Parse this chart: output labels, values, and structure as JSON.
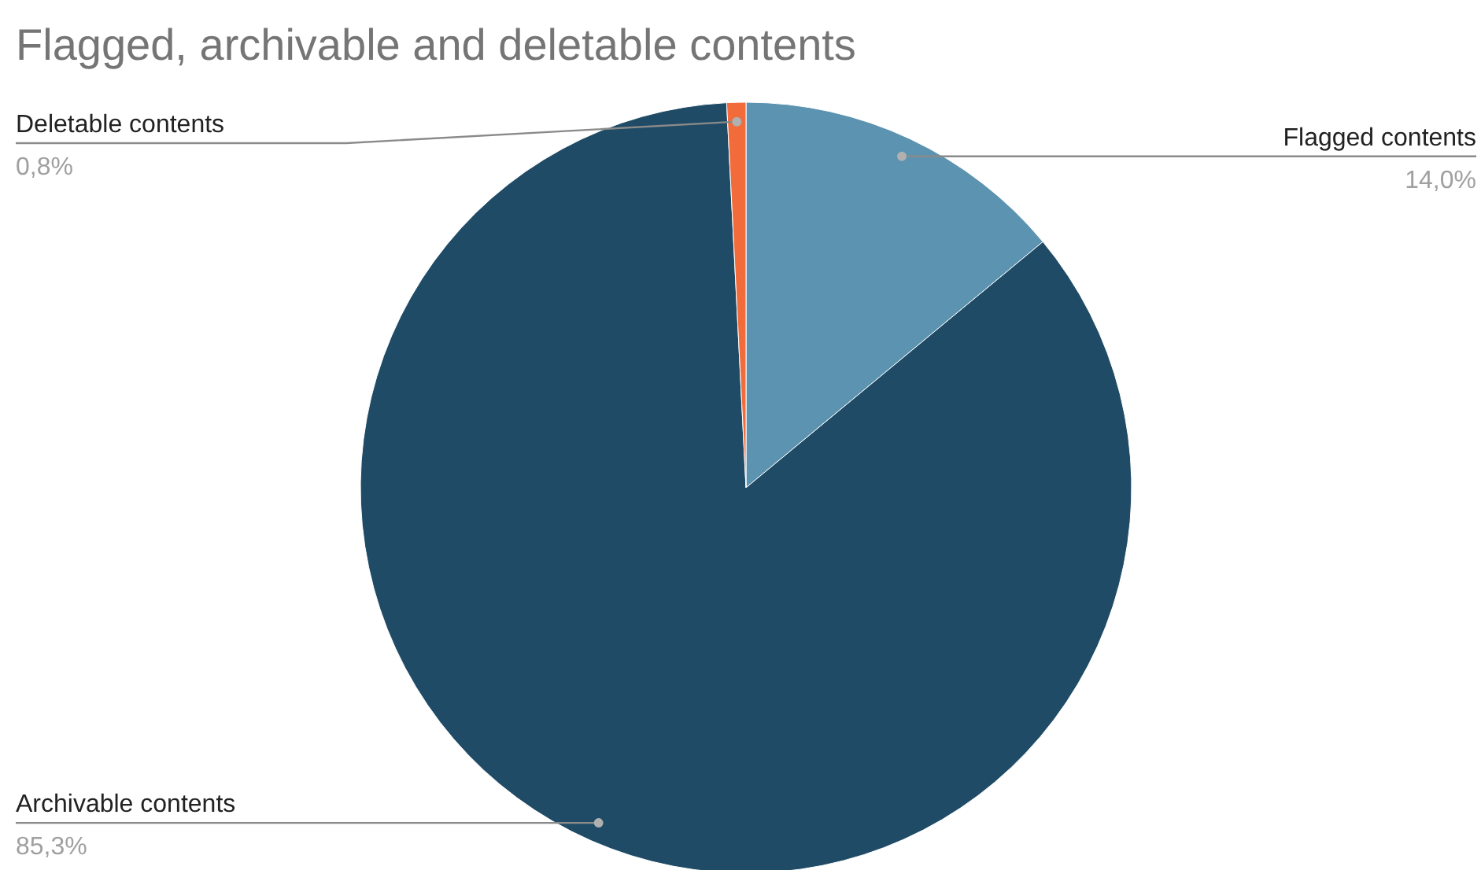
{
  "chart_data": {
    "type": "pie",
    "title": "Flagged, archivable and deletable contents",
    "categories": [
      "Flagged contents",
      "Archivable contents",
      "Deletable contents"
    ],
    "values": [
      14.0,
      85.3,
      0.8
    ],
    "colors": [
      "#5b93b0",
      "#1f4b66",
      "#f26b3a"
    ],
    "value_labels": [
      "14,0%",
      "85,3%",
      "0,8%"
    ]
  }
}
